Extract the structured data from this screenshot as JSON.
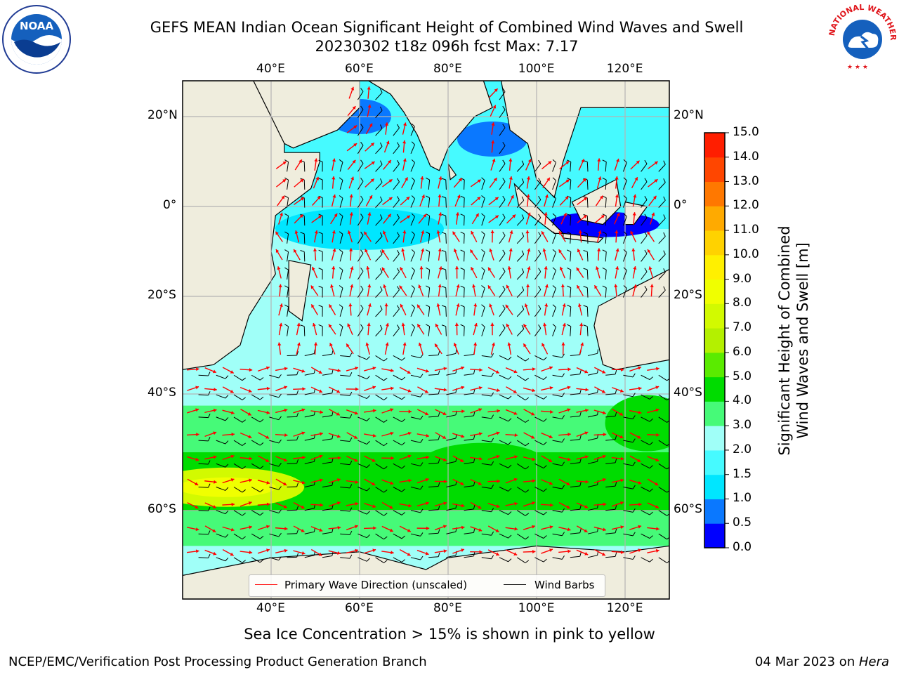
{
  "title": {
    "line1": "GEFS MEAN Indian Ocean Significant Height of Combined Wind Waves and Swell",
    "line2": "20230302 t18z 096h fcst   Max: 7.17"
  },
  "logos": {
    "left": {
      "icon": "noaa-logo-icon",
      "text": "NOAA"
    },
    "right": {
      "icon": "nws-logo-icon",
      "text": "NATIONAL WEATHER SERVICE"
    }
  },
  "map": {
    "lon_labels": [
      "40°E",
      "60°E",
      "80°E",
      "100°E",
      "120°E"
    ],
    "lat_labels_left": [
      "20°N",
      "0°",
      "20°S",
      "40°S",
      "60°S"
    ],
    "lat_labels_right": [
      "20°N",
      "0°",
      "20°S",
      "40°S",
      "60°S"
    ],
    "land_color": "#efeddd",
    "grid_color": "#b4b4b4",
    "barb_color": "#000000",
    "arrow_color": "#ff0000"
  },
  "legend": {
    "items": [
      {
        "label": "Primary Wave Direction (unscaled)",
        "color": "#ff0000"
      },
      {
        "label": "Wind Barbs",
        "color": "#000000"
      }
    ]
  },
  "colorbar": {
    "title_line1": "Significant Height of Combined",
    "title_line2": "Wind Waves and Swell [m]",
    "tick_labels": [
      "0.0",
      "0.5",
      "1.0",
      "1.5",
      "2.0",
      "3.0",
      "4.0",
      "5.0",
      "6.0",
      "7.0",
      "8.0",
      "9.0",
      "10.0",
      "11.0",
      "12.0",
      "13.0",
      "14.0",
      "15.0"
    ],
    "colors": [
      "#0000ff",
      "#0a78ff",
      "#00e6ff",
      "#46faff",
      "#a0fff8",
      "#46fa78",
      "#00dc00",
      "#5aeb00",
      "#b4f000",
      "#d2fa00",
      "#f0ff00",
      "#fff000",
      "#ffd200",
      "#ffaa00",
      "#ff7800",
      "#ff4600",
      "#ff1e00"
    ]
  },
  "chart_data": {
    "type": "heatmap",
    "variable": "Significant Height of Combined Wind Waves and Swell",
    "units": "m",
    "max_value": 7.17,
    "lon_range": [
      20,
      130
    ],
    "lat_range": [
      -75,
      28
    ],
    "color_scale_levels": [
      0.0,
      0.5,
      1.0,
      1.5,
      2.0,
      3.0,
      4.0,
      5.0,
      6.0,
      7.0,
      8.0,
      9.0,
      10.0,
      11.0,
      12.0,
      13.0,
      14.0,
      15.0
    ]
  },
  "note": "Sea Ice Concentration > 15% is shown in pink to yellow",
  "footer": {
    "left": "NCEP/EMC/Verification Post Processing Product Generation Branch",
    "date": "04 Mar 2023 on ",
    "machine": "Hera"
  }
}
